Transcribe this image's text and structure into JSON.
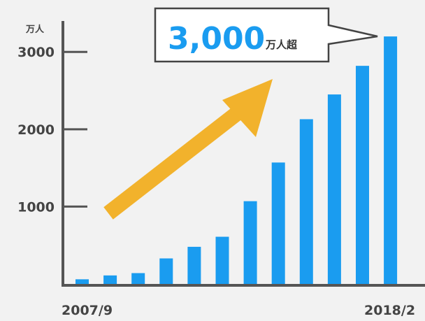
{
  "colors": {
    "background": "#f2f2f2",
    "bar": "#1a9cf0",
    "axis": "#555555",
    "arrow": "#f2b22c",
    "callout_number": "#1a9cf0",
    "callout_border": "#444444"
  },
  "chart_data": {
    "type": "bar",
    "title": "",
    "ylabel": "万人",
    "xlabel": "",
    "ylim": [
      0,
      3400
    ],
    "y_ticks": [
      {
        "value": 3000,
        "label": "3000"
      },
      {
        "value": 2000,
        "label": "2000"
      },
      {
        "value": 1000,
        "label": "1000"
      }
    ],
    "x_labels": {
      "start": "2007/9",
      "end": "2018/2"
    },
    "values": [
      60,
      110,
      140,
      330,
      480,
      610,
      1070,
      1570,
      2130,
      2450,
      2820,
      3200
    ],
    "grid": false,
    "legend": "none",
    "annotation": {
      "number": "3,000",
      "suffix": "万人超",
      "arrow": "upward trend"
    }
  }
}
